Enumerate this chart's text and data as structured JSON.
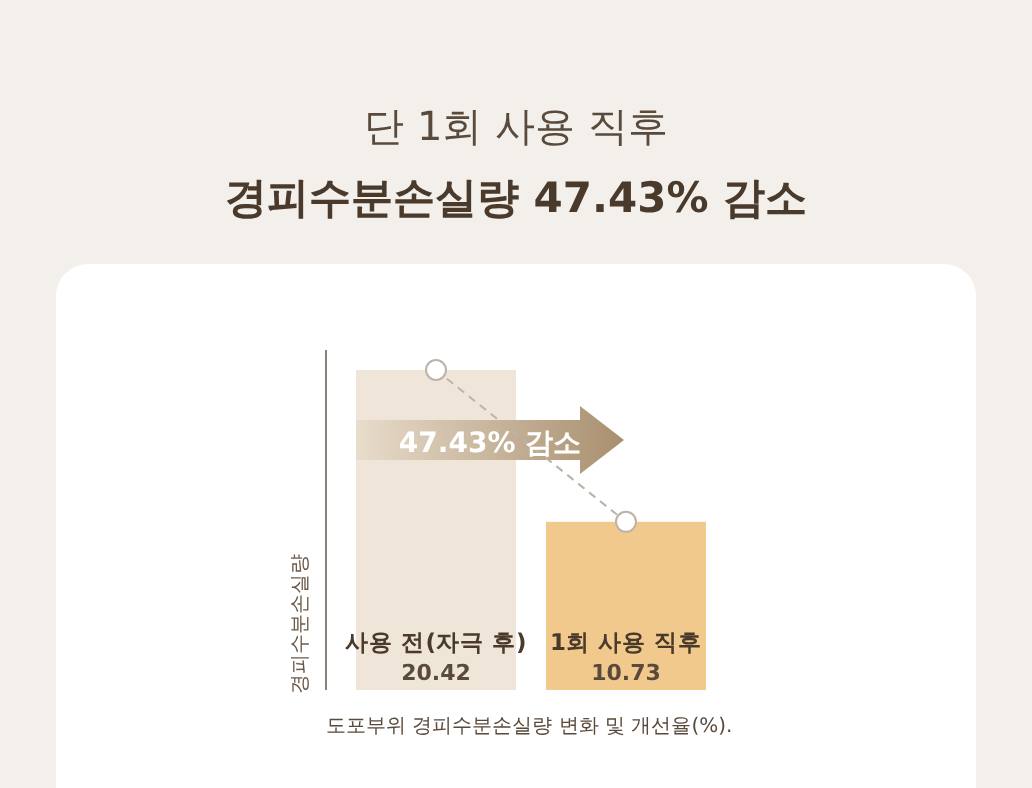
{
  "chart_data": {
    "type": "bar",
    "title": "단 1회 사용 직후",
    "subtitle": "경피수분손실량 47.43% 감소",
    "ylabel": "경피수분손실량",
    "categories": [
      "사용 전(자극 후)",
      "1회 사용 직후"
    ],
    "series": [
      {
        "colors": [
          "#efe5d8",
          "#f1c98c"
        ],
        "values": [
          20.42,
          10.73
        ],
        "value_labels": [
          "20.42",
          "10.73"
        ]
      },
      {
        "type": "line",
        "color": "#bdb3a8",
        "values": [
          20.42,
          10.73
        ],
        "marker": "circle",
        "line_style": "dashed"
      }
    ],
    "annotations": [
      "47.43% 감소",
      "도포부위 경피수분손실량 변화 및 개선율(%)."
    ]
  }
}
